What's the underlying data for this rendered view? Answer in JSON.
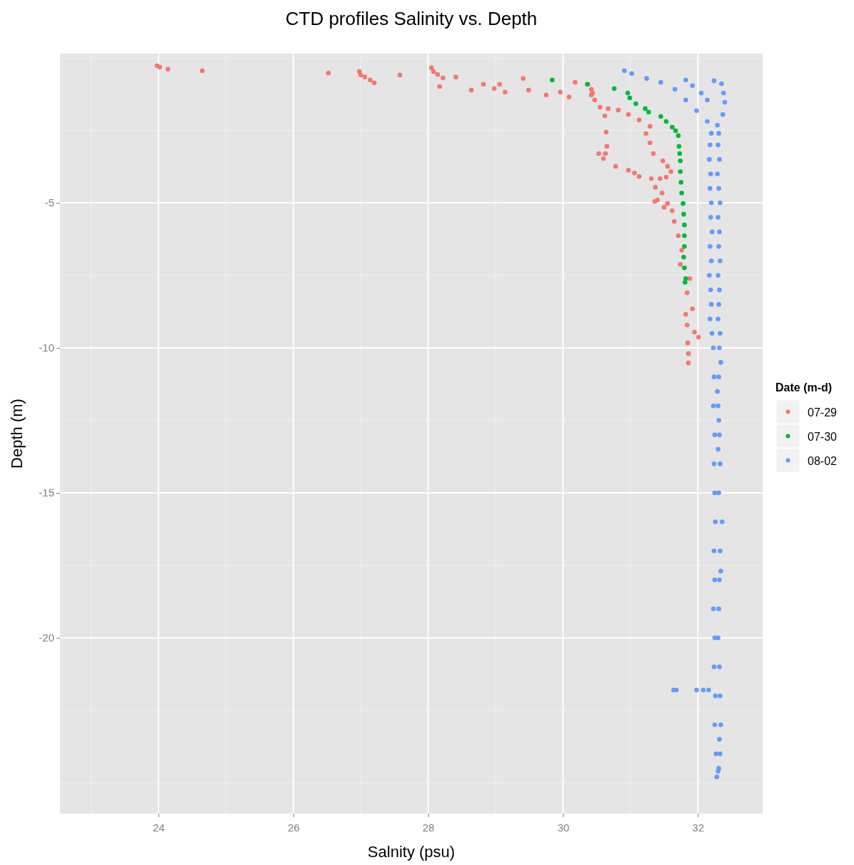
{
  "chart_data": {
    "type": "scatter",
    "title": "CTD profiles Salinity vs. Depth",
    "xlabel": "Salnity (psu)",
    "ylabel": "Depth (m)",
    "legend_title": "Date (m-d)",
    "legend": "right",
    "grid": true,
    "marker": "circle",
    "xlim": [
      22.54,
      32.96
    ],
    "ylim": [
      -26.06,
      0.15
    ],
    "xticks": [
      24,
      26,
      28,
      30,
      32
    ],
    "yticks": [
      -5,
      -10,
      -15,
      -20
    ],
    "series": [
      {
        "name": "07-29",
        "color": "#f8766d",
        "x": [
          23.98,
          24.02,
          24.14,
          24.65,
          26.52,
          26.98,
          27.0,
          27.06,
          27.14,
          27.2,
          27.58,
          28.05,
          28.08,
          28.14,
          28.22,
          28.17,
          28.41,
          28.64,
          28.82,
          28.98,
          29.06,
          29.14,
          29.41,
          29.49,
          29.75,
          29.96,
          30.09,
          30.18,
          30.37,
          30.42,
          30.44,
          30.47,
          30.42,
          30.55,
          30.67,
          30.82,
          30.97,
          31.13,
          31.29,
          31.23,
          31.29,
          31.34,
          31.48,
          31.55,
          31.6,
          31.53,
          30.62,
          30.64,
          30.65,
          30.63,
          30.53,
          30.6,
          30.78,
          30.97,
          31.06,
          31.13,
          31.31,
          31.44,
          31.37,
          31.47,
          31.4,
          31.36,
          31.5,
          31.55,
          31.62,
          31.65,
          31.71,
          31.76,
          31.74,
          31.88,
          31.84,
          31.92,
          31.82,
          31.84,
          31.95,
          32.01,
          31.85,
          31.86,
          31.86
        ],
        "values": [
          -0.27,
          -0.32,
          -0.39,
          -0.44,
          -0.52,
          -0.47,
          -0.59,
          -0.66,
          -0.76,
          -0.86,
          -0.59,
          -0.34,
          -0.47,
          -0.57,
          -0.69,
          -0.99,
          -0.66,
          -1.11,
          -0.91,
          -1.06,
          -0.91,
          -1.18,
          -0.71,
          -1.11,
          -1.28,
          -1.18,
          -1.35,
          -0.84,
          -0.91,
          -1.08,
          -1.21,
          -1.45,
          -1.28,
          -1.7,
          -1.75,
          -1.8,
          -1.95,
          -2.14,
          -2.36,
          -2.61,
          -2.93,
          -3.3,
          -3.55,
          -3.74,
          -3.92,
          -4.11,
          -2.0,
          -2.56,
          -3.05,
          -3.3,
          -3.3,
          -3.47,
          -3.74,
          -3.87,
          -3.97,
          -4.09,
          -4.16,
          -4.16,
          -4.46,
          -4.66,
          -4.9,
          -4.95,
          -5.15,
          -5.02,
          -5.27,
          -5.64,
          -6.13,
          -6.63,
          -7.12,
          -7.61,
          -8.1,
          -8.65,
          -8.84,
          -9.21,
          -9.46,
          -9.63,
          -9.83,
          -10.2,
          -10.52
        ]
      },
      {
        "name": "07-30",
        "color": "#00ba38",
        "x": [
          29.84,
          30.36,
          30.76,
          30.96,
          30.99,
          31.08,
          31.22,
          31.27,
          31.45,
          31.53,
          31.62,
          31.67,
          31.71,
          31.72,
          31.73,
          31.74,
          31.74,
          31.75,
          31.76,
          31.78,
          31.79,
          31.8,
          31.8,
          31.8,
          31.79,
          31.8,
          31.82,
          31.81
        ],
        "values": [
          -0.76,
          -0.91,
          -1.06,
          -1.21,
          -1.38,
          -1.58,
          -1.75,
          -1.87,
          -2.02,
          -2.19,
          -2.39,
          -2.51,
          -2.68,
          -3.05,
          -3.3,
          -3.55,
          -3.92,
          -4.29,
          -4.66,
          -5.02,
          -5.39,
          -5.76,
          -6.13,
          -6.5,
          -6.87,
          -7.24,
          -7.61,
          -7.74
        ]
      },
      {
        "name": "08-02",
        "color": "#619cff",
        "x": [
          30.91,
          31.02,
          31.24,
          31.45,
          31.66,
          31.82,
          31.98,
          32.14,
          31.82,
          31.92,
          32.05,
          32.14,
          32.24,
          32.35,
          32.38,
          32.4,
          32.37,
          32.29,
          32.2,
          32.18,
          32.17,
          32.19,
          32.18,
          32.2,
          32.19,
          32.21,
          32.18,
          32.2,
          32.17,
          32.19,
          32.2,
          32.18,
          32.21,
          32.23,
          32.24,
          32.23,
          32.25,
          32.24,
          32.25,
          32.26,
          32.24,
          32.25,
          32.23,
          32.25,
          32.24,
          32.26,
          32.25,
          32.27,
          32.28,
          32.31,
          32.3,
          32.32,
          32.29,
          32.31,
          32.33,
          32.3,
          32.32,
          32.31,
          32.33,
          32.3,
          32.32,
          32.31,
          32.3,
          32.33,
          32.32,
          32.34,
          32.31,
          32.29,
          32.3,
          32.31,
          32.32,
          32.3,
          32.33,
          32.31,
          32.36,
          32.33,
          32.34,
          32.32,
          32.31,
          32.3,
          32.32,
          32.33,
          32.34,
          32.32,
          32.33,
          32.31,
          32.3,
          31.64,
          31.68,
          31.98,
          32.08,
          32.16
        ],
        "values": [
          -0.44,
          -0.54,
          -0.71,
          -0.84,
          -1.08,
          -1.45,
          -1.82,
          -2.19,
          -0.76,
          -0.96,
          -1.21,
          -1.45,
          -0.79,
          -0.89,
          -1.21,
          -1.53,
          -1.95,
          -2.32,
          -2.6,
          -3.0,
          -3.5,
          -4.0,
          -4.5,
          -5.0,
          -5.5,
          -6.0,
          -6.5,
          -7.0,
          -7.5,
          -8.0,
          -8.5,
          -9.0,
          -9.5,
          -10.0,
          -11.0,
          -12.0,
          -13.0,
          -14.0,
          -15.0,
          -16.0,
          -17.0,
          -18.0,
          -19.0,
          -20.0,
          -21.0,
          -22.0,
          -23.0,
          -24.0,
          -24.8,
          -2.6,
          -3.0,
          -3.5,
          -4.0,
          -4.5,
          -5.0,
          -5.5,
          -6.0,
          -6.5,
          -7.0,
          -7.5,
          -8.0,
          -8.5,
          -9.0,
          -9.5,
          -10.0,
          -10.5,
          -11.0,
          -11.5,
          -12.0,
          -12.5,
          -13.0,
          -13.5,
          -14.0,
          -15.0,
          -16.0,
          -17.0,
          -17.7,
          -18.0,
          -19.0,
          -20.0,
          -21.0,
          -22.0,
          -23.0,
          -23.5,
          -24.0,
          -24.5,
          -24.6,
          -21.8,
          -21.8,
          -21.8,
          -21.8,
          -21.8
        ]
      }
    ]
  }
}
